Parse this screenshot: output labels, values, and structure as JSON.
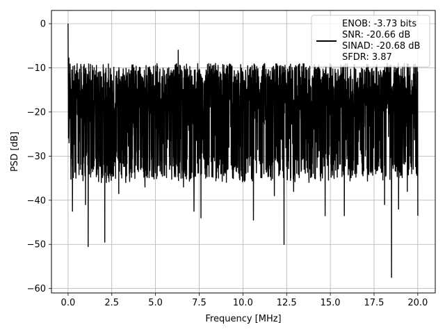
{
  "chart_data": {
    "type": "line",
    "title": "",
    "xlabel": "Frequency [MHz]",
    "ylabel": "PSD [dB]",
    "xlim": [
      -0.95,
      21.0
    ],
    "ylim": [
      -61.0,
      3.0
    ],
    "xticks": [
      0.0,
      2.5,
      5.0,
      7.5,
      10.0,
      12.5,
      15.0,
      17.5,
      20.0
    ],
    "xtick_labels": [
      "0.0",
      "2.5",
      "5.0",
      "7.5",
      "10.0",
      "12.5",
      "15.0",
      "17.5",
      "20.0"
    ],
    "yticks": [
      0,
      -10,
      -20,
      -30,
      -40,
      -50,
      -60
    ],
    "ytick_labels": [
      "0",
      "−10",
      "−20",
      "−30",
      "−40",
      "−50",
      "−60"
    ],
    "grid": true,
    "legend_position": "top-right",
    "legend_lines": [
      "ENOB: -3.73 bits",
      "SNR: -20.66 dB",
      "SINAD: -20.68 dB",
      "SFDR: 3.87"
    ],
    "series": [
      {
        "color": "#000000",
        "points": [
          [
            0.0,
            0.0
          ],
          [
            0.03,
            -9.0
          ],
          [
            0.06,
            -27.0
          ],
          [
            0.1,
            -12.0
          ],
          [
            0.15,
            -26.0
          ],
          [
            0.2,
            -15.0
          ],
          [
            0.25,
            -42.5
          ],
          [
            0.35,
            -18.0
          ],
          [
            0.45,
            -35.0
          ],
          [
            0.55,
            -12.0
          ],
          [
            0.7,
            -33.0
          ],
          [
            0.85,
            -14.0
          ],
          [
            1.0,
            -41.0
          ],
          [
            1.15,
            -50.5
          ],
          [
            1.3,
            -13.0
          ],
          [
            1.5,
            -31.0
          ],
          [
            1.7,
            -18.0
          ],
          [
            1.9,
            -36.0
          ],
          [
            2.1,
            -49.5
          ],
          [
            2.25,
            -14.0
          ],
          [
            2.5,
            -34.0
          ],
          [
            2.7,
            -18.0
          ],
          [
            2.9,
            -38.5
          ],
          [
            3.1,
            -12.0
          ],
          [
            3.3,
            -36.0
          ],
          [
            3.6,
            -15.0
          ],
          [
            3.9,
            -29.0
          ],
          [
            4.2,
            -18.0
          ],
          [
            4.4,
            -37.0
          ],
          [
            4.6,
            -11.0
          ],
          [
            4.9,
            -31.0
          ],
          [
            5.2,
            -16.0
          ],
          [
            5.5,
            -33.0
          ],
          [
            5.8,
            -12.0
          ],
          [
            6.0,
            -31.0
          ],
          [
            6.3,
            -6.0
          ],
          [
            6.6,
            -37.0
          ],
          [
            6.9,
            -12.0
          ],
          [
            7.2,
            -42.5
          ],
          [
            7.4,
            -16.0
          ],
          [
            7.6,
            -44.0
          ],
          [
            7.8,
            -13.0
          ],
          [
            8.0,
            -32.0
          ],
          [
            8.3,
            -14.0
          ],
          [
            8.6,
            -35.0
          ],
          [
            8.9,
            -11.0
          ],
          [
            9.2,
            -28.0
          ],
          [
            9.5,
            -18.0
          ],
          [
            9.8,
            -35.0
          ],
          [
            10.0,
            -11.0
          ],
          [
            10.3,
            -27.0
          ],
          [
            10.6,
            -44.5
          ],
          [
            10.9,
            -12.0
          ],
          [
            11.2,
            -34.0
          ],
          [
            11.5,
            -16.0
          ],
          [
            11.8,
            -39.0
          ],
          [
            12.1,
            -13.0
          ],
          [
            12.35,
            -50.0
          ],
          [
            12.6,
            -15.0
          ],
          [
            12.9,
            -38.0
          ],
          [
            13.2,
            -12.0
          ],
          [
            13.5,
            -33.0
          ],
          [
            13.8,
            -17.0
          ],
          [
            14.1,
            -35.0
          ],
          [
            14.4,
            -11.0
          ],
          [
            14.7,
            -43.5
          ],
          [
            15.0,
            -18.0
          ],
          [
            15.3,
            -32.0
          ],
          [
            15.6,
            -12.0
          ],
          [
            15.8,
            -43.5
          ],
          [
            16.1,
            -17.0
          ],
          [
            16.4,
            -34.0
          ],
          [
            16.7,
            -13.0
          ],
          [
            17.0,
            -30.0
          ],
          [
            17.3,
            -16.0
          ],
          [
            17.6,
            -34.0
          ],
          [
            17.9,
            -11.0
          ],
          [
            18.1,
            -41.0
          ],
          [
            18.3,
            -17.0
          ],
          [
            18.5,
            -57.5
          ],
          [
            18.7,
            -14.0
          ],
          [
            18.9,
            -42.0
          ],
          [
            19.1,
            -12.0
          ],
          [
            19.4,
            -38.0
          ],
          [
            19.7,
            -15.0
          ],
          [
            19.9,
            -28.0
          ],
          [
            20.0,
            -43.5
          ]
        ],
        "noise_band": [
          -35.0,
          -9.0
        ]
      }
    ]
  }
}
